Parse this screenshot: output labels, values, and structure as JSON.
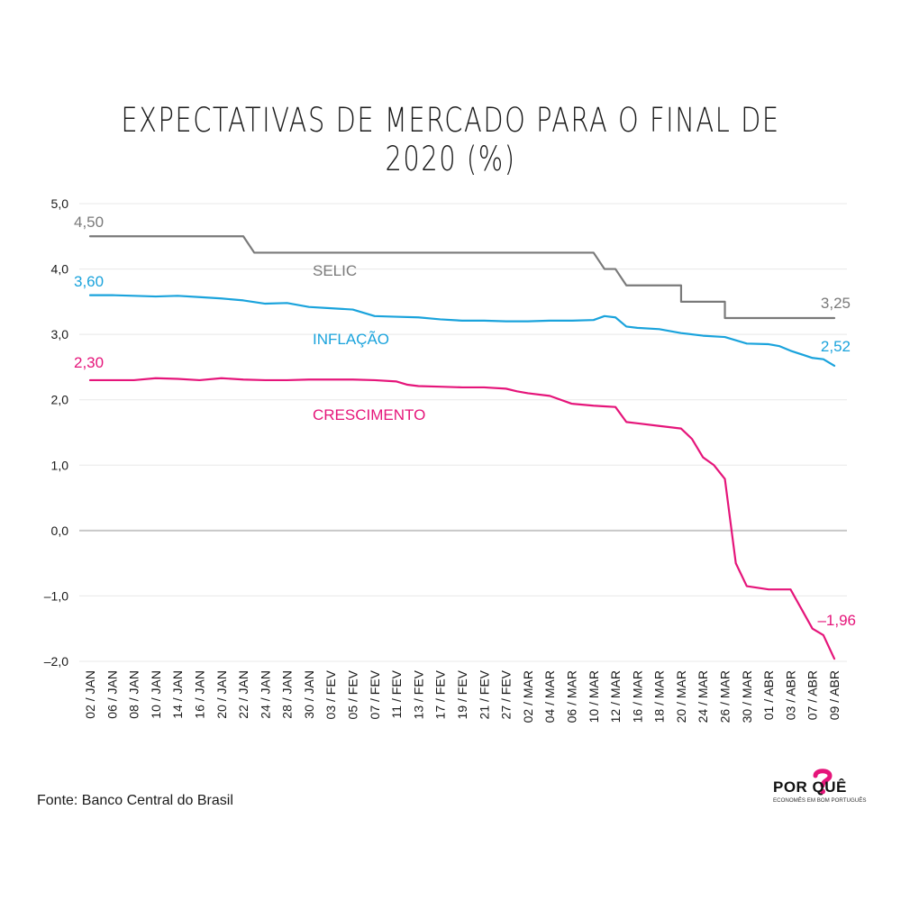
{
  "title": "EXPECTATIVAS DE MERCADO PARA O FINAL DE 2020 (%)",
  "source": "Fonte: Banco Central do Brasil",
  "logo": {
    "text": "POR QUÊ",
    "tagline": "ECONOMÊS EM BOM PORTUGUÊS"
  },
  "colors": {
    "selic": "#7a7a7a",
    "inflacao": "#1aa3dc",
    "crescimento": "#e5157a",
    "zero": "#c8c8c8",
    "grid": "#e8e8e8"
  },
  "chart_data": {
    "type": "line",
    "title": "EXPECTATIVAS DE MERCADO PARA O FINAL DE 2020 (%)",
    "xlabel": "",
    "ylabel": "",
    "ylim": [
      -2.0,
      5.0
    ],
    "y_ticks": [
      "5,0",
      "4,0",
      "3,0",
      "2,0",
      "1,0",
      "0,0",
      "–1,0",
      "–2,0"
    ],
    "y_tick_values": [
      5,
      4,
      3,
      2,
      1,
      0,
      -1,
      -2
    ],
    "x_tick_labels": [
      "02 / JAN",
      "06 / JAN",
      "08 / JAN",
      "10 / JAN",
      "14 / JAN",
      "16 / JAN",
      "20 / JAN",
      "22 / JAN",
      "24 / JAN",
      "28 / JAN",
      "30 / JAN",
      "03 / FEV",
      "05 / FEV",
      "07 / FEV",
      "11 / FEV",
      "13 / FEV",
      "17 / FEV",
      "19 / FEV",
      "21 / FEV",
      "27 / FEV",
      "02 / MAR",
      "04 / MAR",
      "06 / MAR",
      "10 / MAR",
      "12 / MAR",
      "16 / MAR",
      "18 / MAR",
      "20 / MAR",
      "24 / MAR",
      "26 / MAR",
      "30 / MAR",
      "01 / ABR",
      "03 / ABR",
      "07 / ABR",
      "09 / ABR"
    ],
    "x_index_range": [
      0,
      68
    ],
    "series": [
      {
        "name": "SELIC",
        "key": "selic",
        "start_label": "4,50",
        "end_label": "3,25",
        "x": [
          0,
          14,
          15,
          46,
          47,
          48,
          49,
          50,
          54,
          55,
          58,
          59,
          68
        ],
        "values": [
          4.5,
          4.5,
          4.25,
          4.25,
          4.0,
          4.0,
          3.75,
          3.75,
          3.5,
          3.5,
          3.25,
          3.25,
          3.25
        ]
      },
      {
        "name": "INFLAÇÃO",
        "key": "inflacao",
        "start_label": "3,60",
        "end_label": "2,52",
        "x": [
          0,
          2,
          4,
          6,
          8,
          10,
          12,
          14,
          16,
          18,
          20,
          22,
          24,
          26,
          28,
          30,
          32,
          34,
          36,
          38,
          40,
          42,
          44,
          46,
          47,
          48,
          49,
          50,
          52,
          54,
          56,
          58,
          60,
          62,
          63,
          64,
          66,
          67,
          68
        ],
        "values": [
          3.6,
          3.6,
          3.59,
          3.58,
          3.59,
          3.57,
          3.55,
          3.52,
          3.47,
          3.48,
          3.42,
          3.4,
          3.38,
          3.28,
          3.27,
          3.26,
          3.23,
          3.21,
          3.21,
          3.2,
          3.2,
          3.21,
          3.21,
          3.22,
          3.28,
          3.26,
          3.12,
          3.1,
          3.08,
          3.02,
          2.98,
          2.96,
          2.86,
          2.85,
          2.82,
          2.75,
          2.64,
          2.62,
          2.52
        ]
      },
      {
        "name": "CRESCIMENTO",
        "key": "crescimento",
        "start_label": "2,30",
        "end_label": "–1,96",
        "x": [
          0,
          4,
          6,
          8,
          10,
          12,
          14,
          16,
          18,
          20,
          22,
          24,
          26,
          28,
          29,
          30,
          32,
          34,
          36,
          38,
          39,
          40,
          42,
          44,
          46,
          47,
          48,
          49,
          50,
          52,
          54,
          55,
          56,
          57,
          58,
          59,
          60,
          62,
          64,
          66,
          67,
          68
        ],
        "values": [
          2.3,
          2.3,
          2.33,
          2.32,
          2.3,
          2.33,
          2.31,
          2.3,
          2.3,
          2.31,
          2.31,
          2.31,
          2.3,
          2.28,
          2.23,
          2.21,
          2.2,
          2.19,
          2.19,
          2.17,
          2.13,
          2.1,
          2.06,
          1.94,
          1.91,
          1.9,
          1.89,
          1.66,
          1.64,
          1.6,
          1.56,
          1.4,
          1.12,
          1.0,
          0.79,
          -0.5,
          -0.85,
          -0.9,
          -0.9,
          -1.5,
          -1.6,
          -1.96
        ]
      }
    ]
  }
}
